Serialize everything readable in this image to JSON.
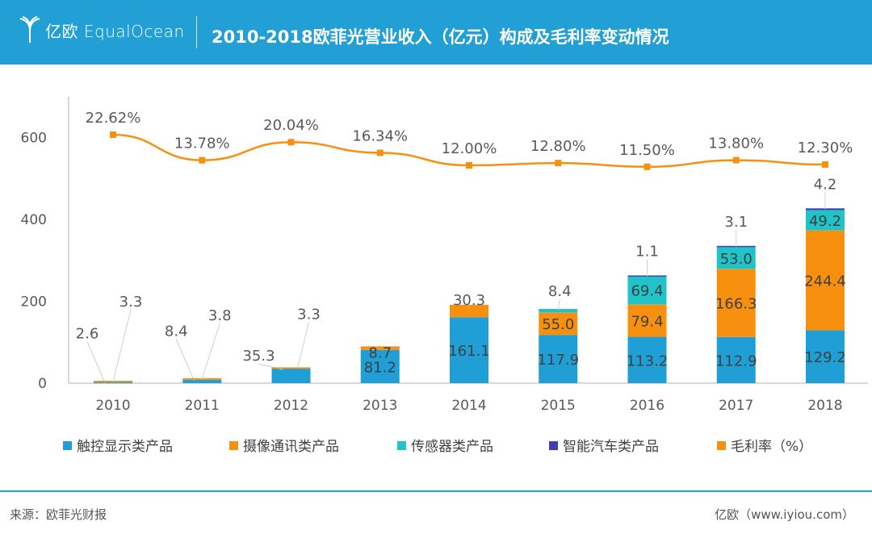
{
  "header": {
    "logo": "亿欧 EqualOcean",
    "title": "2010-2018欧菲光营业收入（亿元）构成及毛利率变动情况"
  },
  "footer": {
    "source": "来源：欧菲光财报",
    "credit": "亿欧（www.iyiou.com）"
  },
  "colors": {
    "header": "#229fd4",
    "touch": "#1f9fd5",
    "camera": "#f7900f",
    "sensor": "#1fc3c8",
    "car": "#3f3fb5",
    "margin": "#f7900f"
  },
  "chart_data": {
    "type": "bar",
    "stacked": true,
    "categories": [
      "2010",
      "2011",
      "2012",
      "2013",
      "2014",
      "2015",
      "2016",
      "2017",
      "2018"
    ],
    "yticks": [
      "0",
      "200",
      "400",
      "600"
    ],
    "ylim": [
      0,
      700
    ],
    "grid": false,
    "legend_position": "bottom",
    "series": [
      {
        "name": "触控显示类产品",
        "values": [
          2.6,
          8.4,
          35.3,
          81.2,
          161.1,
          117.9,
          113.2,
          112.9,
          129.2
        ],
        "labels": [
          "2.6",
          "8.4",
          "35.3",
          "81.2",
          "161.1",
          "117.9",
          "113.2",
          "112.9",
          "129.2"
        ]
      },
      {
        "name": "摄像通讯类产品",
        "values": [
          3.3,
          3.8,
          3.3,
          8.7,
          30.3,
          55.0,
          79.4,
          166.3,
          244.4
        ],
        "labels": [
          "3.3",
          "3.8",
          "3.3",
          "8.7",
          "30.3",
          "55.0",
          "79.4",
          "166.3",
          "244.4"
        ]
      },
      {
        "name": "传感器类产品",
        "values": [
          0,
          0,
          0,
          0,
          0,
          8.4,
          69.4,
          53.0,
          49.2
        ],
        "labels": [
          "",
          "",
          "",
          "",
          "",
          "8.4",
          "69.4",
          "53.0",
          "49.2"
        ]
      },
      {
        "name": "智能汽车类产品",
        "values": [
          0,
          0,
          0,
          0,
          0,
          0,
          1.1,
          3.1,
          4.2
        ],
        "labels": [
          "",
          "",
          "",
          "",
          "",
          "",
          "1.1",
          "3.1",
          "4.2"
        ]
      },
      {
        "name": "毛利率（%）",
        "type": "line",
        "values": [
          22.62,
          13.78,
          20.04,
          16.34,
          12.0,
          12.8,
          11.5,
          13.8,
          12.3
        ],
        "labels": [
          "22.62%",
          "13.78%",
          "20.04%",
          "16.34%",
          "12.00%",
          "12.80%",
          "11.50%",
          "13.80%",
          "12.30%"
        ]
      }
    ]
  }
}
